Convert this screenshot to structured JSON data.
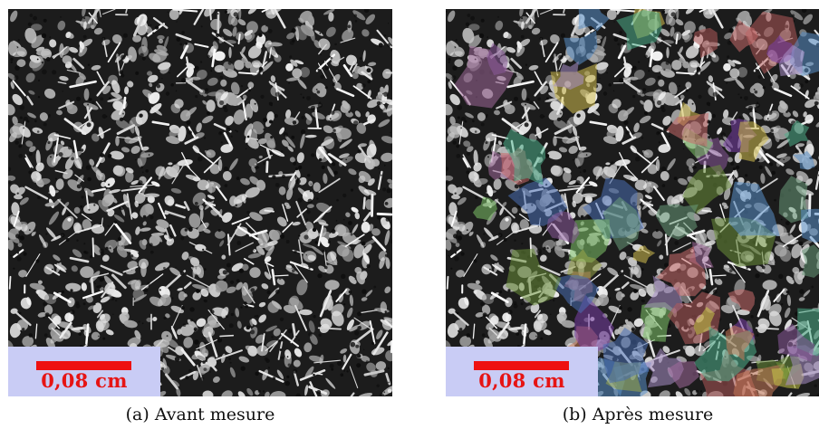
{
  "figure": {
    "panels": [
      {
        "id": "a",
        "caption": "(a) Avant mesure",
        "scale_label": "0,08 cm",
        "colored_overlay": false
      },
      {
        "id": "b",
        "caption": "(b) Après mesure",
        "scale_label": "0,08 cm",
        "colored_overlay": true
      }
    ]
  },
  "colors": {
    "scale_bar": "#ee1111",
    "scale_box": "#c9ccf5",
    "overlay_palette": [
      "#9aa84a",
      "#6b8f3a",
      "#c8c84a",
      "#8a5a9a",
      "#7a3fa8",
      "#b05a5a",
      "#c86b6b",
      "#4a6fb5",
      "#5a8fc8",
      "#4fae8a",
      "#7fc46a",
      "#d4c050",
      "#a06a9a",
      "#c87a5a",
      "#6a9a7a",
      "#aa8fc8"
    ]
  },
  "icons": [
    "scale-bar-icon"
  ]
}
